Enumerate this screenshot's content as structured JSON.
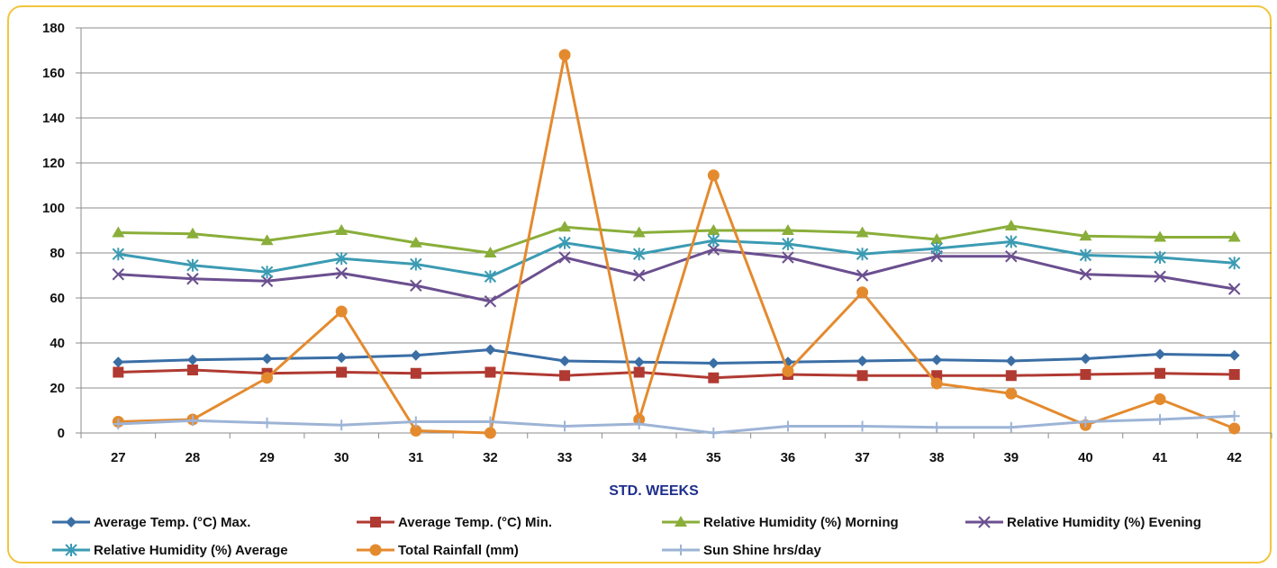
{
  "chart_data": {
    "type": "line",
    "title": "",
    "xlabel": "STD. WEEKS",
    "ylabel": "",
    "ylim": [
      0,
      180
    ],
    "yticks": [
      0,
      20,
      40,
      60,
      80,
      100,
      120,
      140,
      160,
      180
    ],
    "grid": true,
    "legend_position": "bottom",
    "categories": [
      "27",
      "28",
      "29",
      "30",
      "31",
      "32",
      "33",
      "34",
      "35",
      "36",
      "37",
      "38",
      "39",
      "40",
      "41",
      "42"
    ],
    "series": [
      {
        "name": "Average Temp. (°C) Max.",
        "color": "#3a6ea5",
        "marker": "diamond",
        "values": [
          31.5,
          32.5,
          33,
          33.5,
          34.5,
          37,
          32,
          31.5,
          31,
          31.5,
          32,
          32.5,
          32,
          33,
          35,
          34.5
        ]
      },
      {
        "name": "Average Temp. (°C) Min.",
        "color": "#b03a32",
        "marker": "square",
        "values": [
          27,
          28,
          26.5,
          27,
          26.5,
          27,
          25.5,
          27,
          24.5,
          26,
          25.5,
          25.5,
          25.5,
          26,
          26.5,
          26
        ]
      },
      {
        "name": "Relative Humidity (%) Morning",
        "color": "#8aae3a",
        "marker": "triangle",
        "values": [
          89,
          88.5,
          85.5,
          90,
          84.5,
          80,
          91.5,
          89,
          90,
          90,
          89,
          86,
          92,
          87.5,
          87,
          87
        ]
      },
      {
        "name": "Relative Humidity (%) Evening",
        "color": "#6b4f8f",
        "marker": "x",
        "values": [
          70.5,
          68.5,
          67.5,
          71,
          65.5,
          58.5,
          78,
          70,
          81.5,
          78,
          70,
          78.5,
          78.5,
          70.5,
          69.5,
          64
        ]
      },
      {
        "name": "Relative Humidity (%) Average",
        "color": "#3b9bb3",
        "marker": "star",
        "values": [
          79.5,
          74.5,
          71.5,
          77.5,
          75,
          69.5,
          84.5,
          79.5,
          85.5,
          84,
          79.5,
          82,
          85,
          79,
          78,
          75.5
        ]
      },
      {
        "name": "Total Rainfall (mm)",
        "color": "#e48a2e",
        "marker": "circle",
        "values": [
          5,
          6,
          24.5,
          54,
          1,
          0,
          168,
          6,
          114.5,
          27.5,
          62.5,
          22,
          17.5,
          3.5,
          15,
          2
        ]
      },
      {
        "name": "Sun Shine hrs/day",
        "color": "#9db4d6",
        "marker": "plus",
        "values": [
          4,
          5.5,
          4.5,
          3.5,
          5,
          5,
          3,
          4,
          0,
          3,
          3,
          2.5,
          2.5,
          5,
          6,
          7.5
        ]
      }
    ]
  }
}
